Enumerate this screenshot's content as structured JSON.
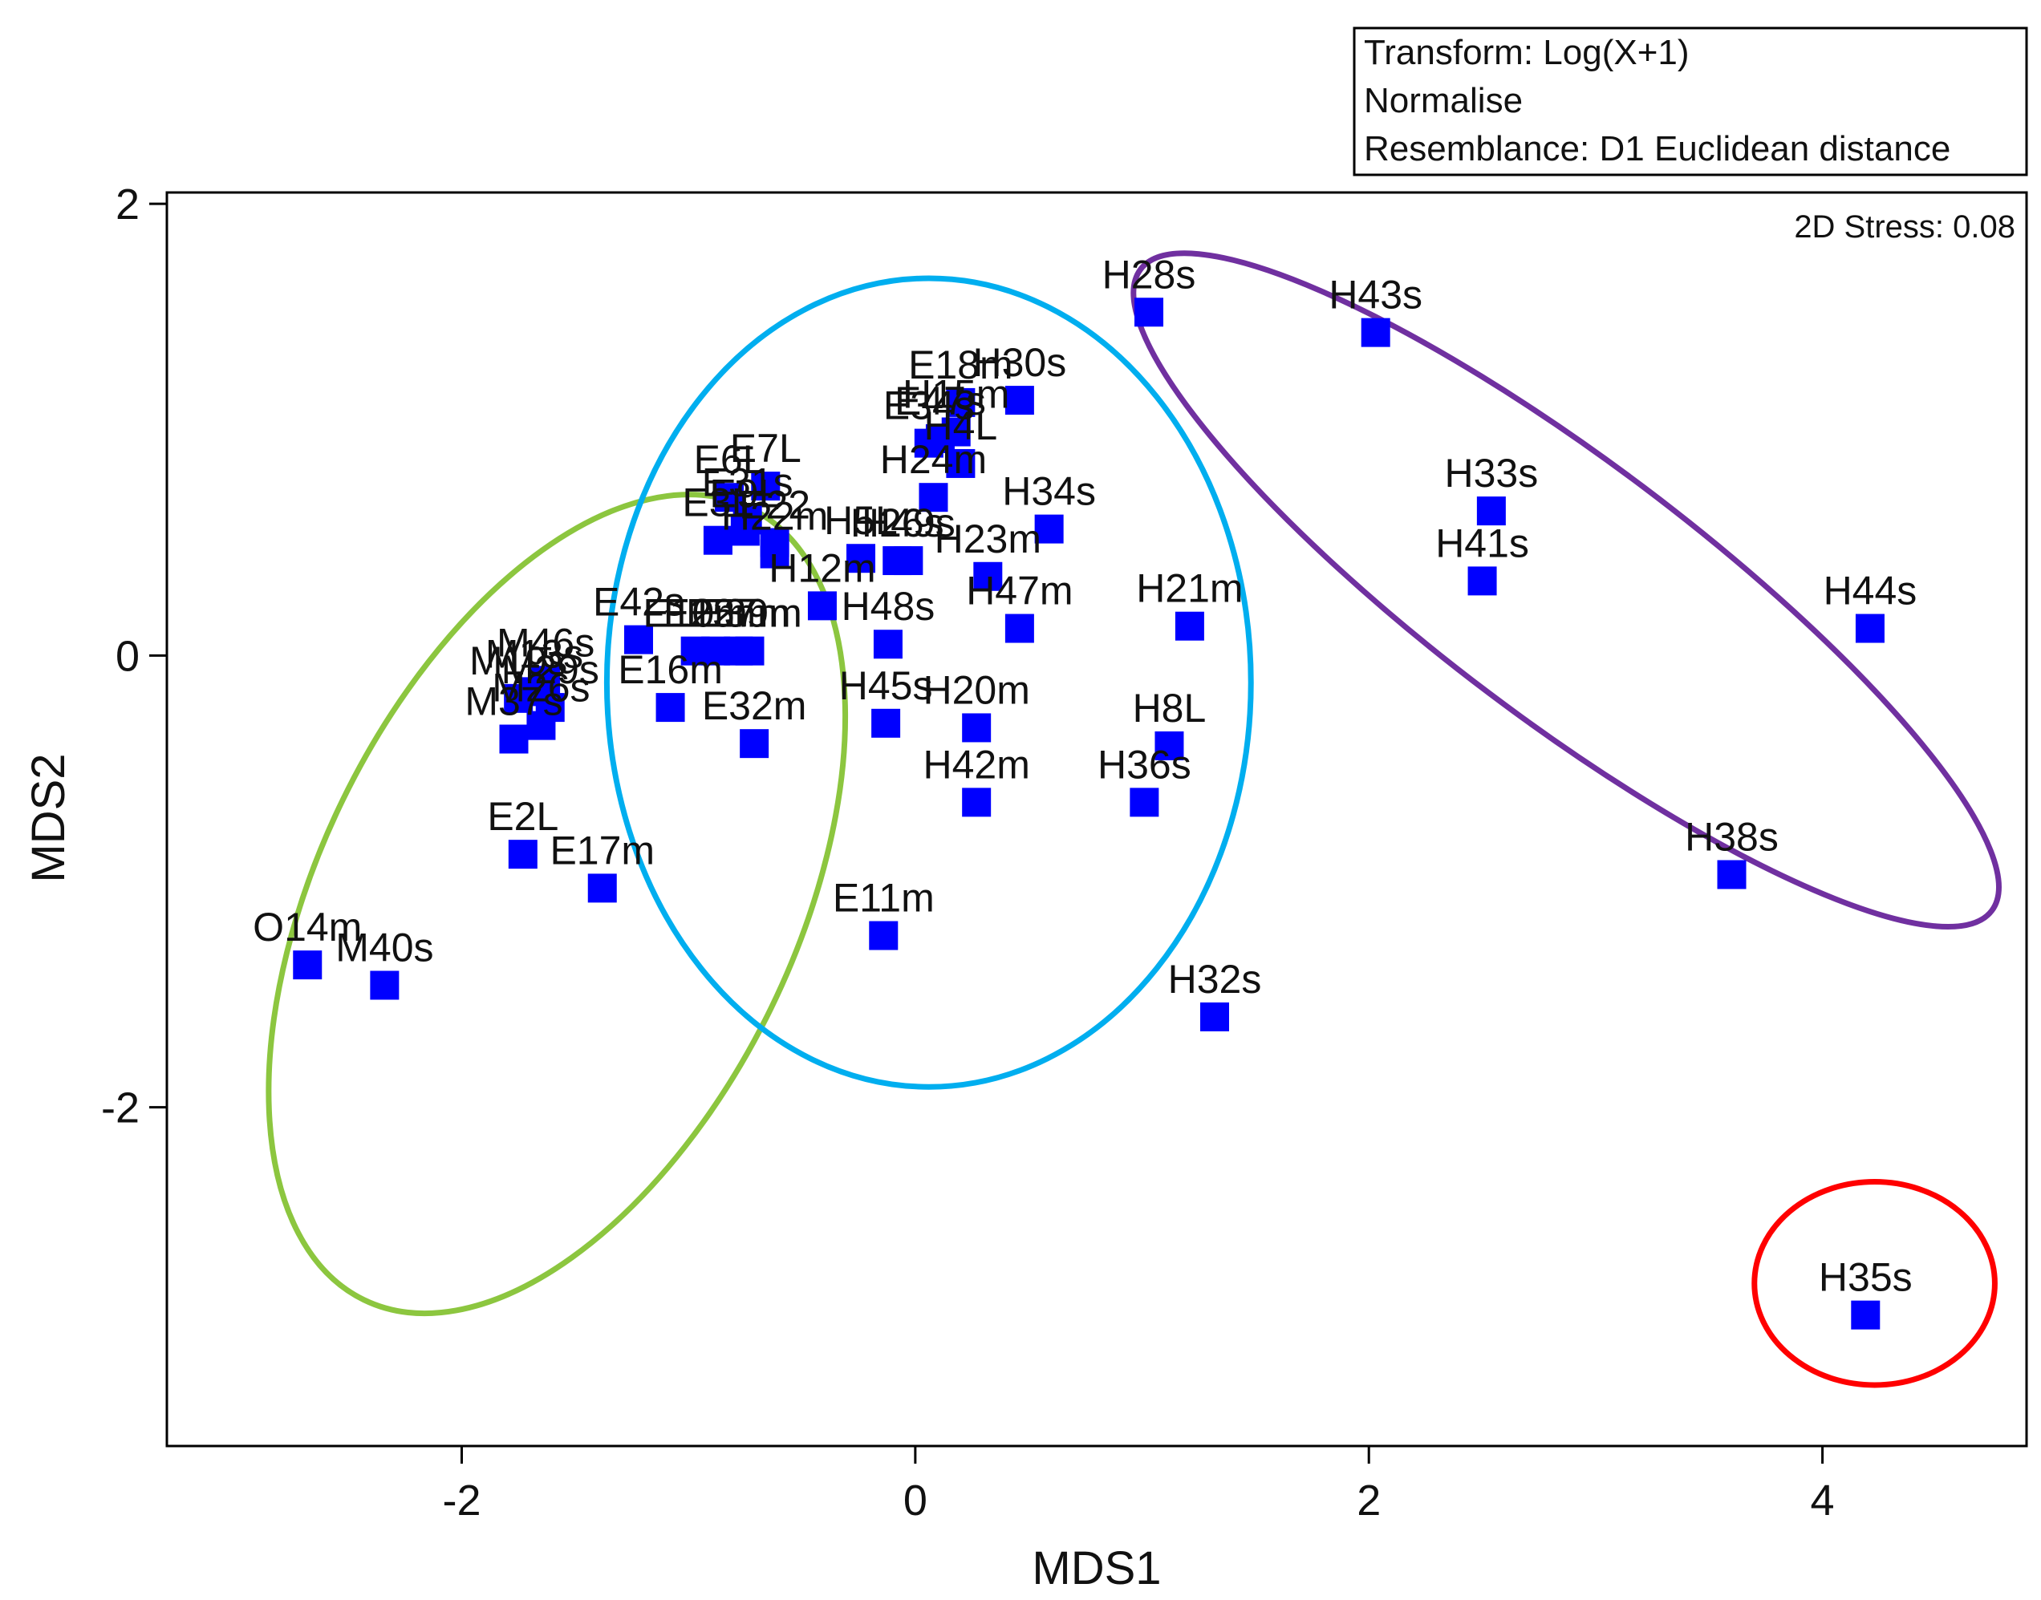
{
  "chart_data": {
    "type": "scatter",
    "title": "",
    "xlabel": "MDS1",
    "ylabel": "MDS2",
    "xlim": [
      -3.3,
      4.9
    ],
    "ylim": [
      -3.5,
      2.05
    ],
    "xticks": [
      -2,
      0,
      2,
      4
    ],
    "yticks": [
      -2,
      0,
      2
    ],
    "xtick_labels": [
      "-2",
      "0",
      "2",
      "4"
    ],
    "ytick_labels": [
      "-2",
      "0",
      "2"
    ],
    "marker_color": "#0000ff",
    "grid": false,
    "stress": "2D Stress: 0.08",
    "info_box": [
      "Transform: Log(X+1)",
      "Normalise",
      "Resemblance: D1 Euclidean distance"
    ],
    "points": [
      {
        "label": "O14m",
        "x": -2.68,
        "y": -1.37
      },
      {
        "label": "M40s",
        "x": -2.34,
        "y": -1.46
      },
      {
        "label": "E2L",
        "x": -1.73,
        "y": -0.88
      },
      {
        "label": "E17m",
        "x": -1.38,
        "y": -1.03
      },
      {
        "label": "M37s",
        "x": -1.77,
        "y": -0.37
      },
      {
        "label": "M26s",
        "x": -1.65,
        "y": -0.31
      },
      {
        "label": "M29s",
        "x": -1.61,
        "y": -0.23
      },
      {
        "label": "M19s",
        "x": -1.75,
        "y": -0.19
      },
      {
        "label": "M13s",
        "x": -1.68,
        "y": -0.16
      },
      {
        "label": "M46s",
        "x": -1.63,
        "y": -0.11
      },
      {
        "label": "E42s",
        "x": -1.22,
        "y": 0.07
      },
      {
        "label": "E16m",
        "x": -1.08,
        "y": -0.23
      },
      {
        "label": "E10m",
        "x": -0.97,
        "y": 0.02
      },
      {
        "label": "E25m",
        "x": -0.88,
        "y": 0.02
      },
      {
        "label": "E27m",
        "x": -0.78,
        "y": 0.02
      },
      {
        "label": "E39m",
        "x": -0.73,
        "y": 0.02
      },
      {
        "label": "E3L",
        "x": -0.87,
        "y": 0.51
      },
      {
        "label": "E6L",
        "x": -0.82,
        "y": 0.7
      },
      {
        "label": "E7L",
        "x": -0.66,
        "y": 0.75
      },
      {
        "label": "E31s",
        "x": -0.74,
        "y": 0.6
      },
      {
        "label": "E9L",
        "x": -0.75,
        "y": 0.55
      },
      {
        "label": "E22",
        "x": -0.62,
        "y": 0.5
      },
      {
        "label": "H22m",
        "x": -0.62,
        "y": 0.45
      },
      {
        "label": "H5L",
        "x": -0.24,
        "y": 0.43
      },
      {
        "label": "H26s",
        "x": -0.08,
        "y": 0.42
      },
      {
        "label": "H49s",
        "x": -0.03,
        "y": 0.42
      },
      {
        "label": "H12m",
        "x": -0.41,
        "y": 0.22
      },
      {
        "label": "E32m",
        "x": -0.71,
        "y": -0.39
      },
      {
        "label": "H48s",
        "x": -0.12,
        "y": 0.05
      },
      {
        "label": "H45s",
        "x": -0.13,
        "y": -0.3
      },
      {
        "label": "H20m",
        "x": 0.27,
        "y": -0.32
      },
      {
        "label": "E18m",
        "x": 0.2,
        "y": 1.12
      },
      {
        "label": "H30s",
        "x": 0.46,
        "y": 1.13
      },
      {
        "label": "E34s",
        "x": 0.06,
        "y": 0.94
      },
      {
        "label": "E47s",
        "x": 0.11,
        "y": 0.96
      },
      {
        "label": "H15m",
        "x": 0.18,
        "y": 0.99
      },
      {
        "label": "H4L",
        "x": 0.2,
        "y": 0.85
      },
      {
        "label": "H24m",
        "x": 0.08,
        "y": 0.7
      },
      {
        "label": "H34s",
        "x": 0.59,
        "y": 0.56
      },
      {
        "label": "H23m",
        "x": 0.32,
        "y": 0.35
      },
      {
        "label": "H47m",
        "x": 0.46,
        "y": 0.12
      },
      {
        "label": "H21m",
        "x": 1.21,
        "y": 0.13
      },
      {
        "label": "H8L",
        "x": 1.12,
        "y": -0.4
      },
      {
        "label": "H36s",
        "x": 1.01,
        "y": -0.65
      },
      {
        "label": "H42m",
        "x": 0.27,
        "y": -0.65
      },
      {
        "label": "E11m",
        "x": -0.14,
        "y": -1.24
      },
      {
        "label": "H32s",
        "x": 1.32,
        "y": -1.6
      },
      {
        "label": "H28s",
        "x": 1.03,
        "y": 1.52
      },
      {
        "label": "H43s",
        "x": 2.03,
        "y": 1.43
      },
      {
        "label": "H33s",
        "x": 2.54,
        "y": 0.64
      },
      {
        "label": "H41s",
        "x": 2.5,
        "y": 0.33
      },
      {
        "label": "H44s",
        "x": 4.21,
        "y": 0.12
      },
      {
        "label": "H38s",
        "x": 3.6,
        "y": -0.97
      },
      {
        "label": "H35s",
        "x": 4.19,
        "y": -2.92
      }
    ],
    "groups": [
      {
        "name": "green-group",
        "color": "#8cc63f",
        "cx": -1.58,
        "cy": -1.1,
        "rx": 1.05,
        "ry": 1.95,
        "angle": 26
      },
      {
        "name": "blue-group",
        "color": "#00aeef",
        "cx": 0.06,
        "cy": -0.12,
        "rx": 1.42,
        "ry": 1.79,
        "angle": 0
      },
      {
        "name": "purple-group",
        "color": "#7030a0",
        "cx": 2.87,
        "cy": 0.29,
        "rx": 2.35,
        "ry": 0.57,
        "angle": 37
      },
      {
        "name": "red-group",
        "color": "#ff0000",
        "cx": 4.23,
        "cy": -2.78,
        "rx": 0.53,
        "ry": 0.45,
        "angle": 0
      }
    ]
  }
}
